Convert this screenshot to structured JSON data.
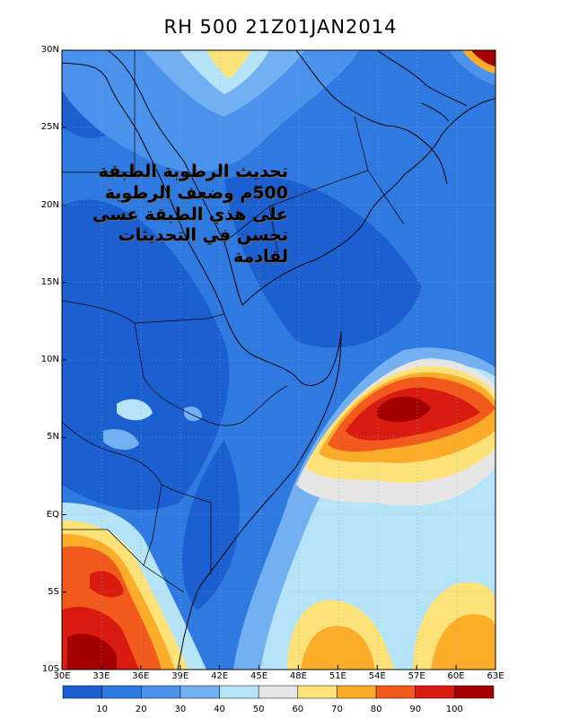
{
  "title": "RH 500 21Z01JAN2014",
  "annotation_lines": [
    "تحديث الرطوبة الطبقة",
    "500م وضعف الرطوبة",
    "على هذي الطبقة عسى",
    "تحسن في التحديثات",
    "لقادمة"
  ],
  "lat_labels": [
    "30N",
    "25N",
    "20N",
    "15N",
    "10N",
    "5N",
    "EQ",
    "5S",
    "10S"
  ],
  "lon_labels": [
    "30E",
    "33E",
    "36E",
    "39E",
    "42E",
    "45E",
    "48E",
    "51E",
    "54E",
    "57E",
    "60E",
    "63E"
  ],
  "colorbar": {
    "labels": [
      "10",
      "20",
      "30",
      "40",
      "50",
      "60",
      "70",
      "80",
      "90",
      "100"
    ],
    "colors": [
      "#1c5fd0",
      "#2f7ae0",
      "#4a92ec",
      "#73b0f2",
      "#b5e4f8",
      "#e6e6e6",
      "#fde27a",
      "#fbad2a",
      "#f2591c",
      "#da1b12",
      "#a50000"
    ]
  }
}
